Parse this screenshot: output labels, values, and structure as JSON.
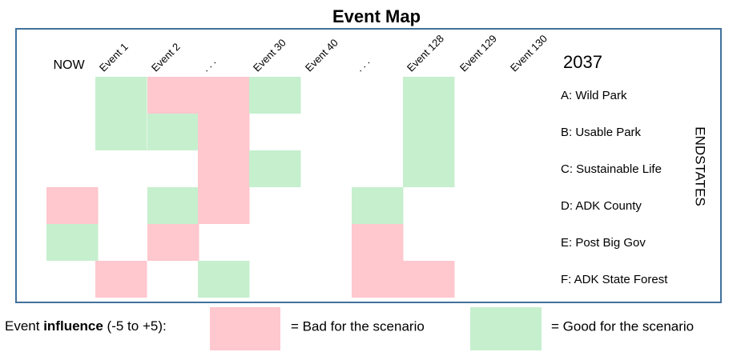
{
  "title": "Event Map",
  "year": "2037",
  "side_label": "ENDSTATES",
  "columns": [
    "NOW",
    "Event 1",
    "Event 2",
    ". . .",
    "Event 30",
    "Event 40",
    ". . .",
    "Event 128",
    "Event 129",
    "Event 130"
  ],
  "rows": [
    {
      "label": "A: Wild Park",
      "cells": [
        null,
        1,
        0,
        0,
        1,
        null,
        null,
        1,
        null,
        null
      ]
    },
    {
      "label": "B: Usable Park",
      "cells": [
        null,
        1,
        1,
        0,
        null,
        null,
        null,
        1,
        null,
        null
      ]
    },
    {
      "label": "C: Sustainable Life",
      "cells": [
        null,
        null,
        null,
        0,
        1,
        null,
        null,
        1,
        null,
        null
      ]
    },
    {
      "label": "D: ADK County",
      "cells": [
        0,
        null,
        1,
        0,
        null,
        null,
        1,
        null,
        null,
        null
      ]
    },
    {
      "label": "E: Post Big Gov",
      "cells": [
        1,
        null,
        0,
        null,
        null,
        null,
        0,
        null,
        null,
        null
      ]
    },
    {
      "label": "F: ADK State Forest",
      "cells": [
        null,
        0,
        null,
        1,
        null,
        null,
        0,
        0,
        null,
        null
      ]
    }
  ],
  "legend": {
    "intro": [
      "Event ",
      "influence",
      " (-5 to +5):"
    ],
    "items": [
      {
        "label": "= Bad for the scenario",
        "color": "#ffc7ce"
      },
      {
        "label": "= Good for the scenario",
        "color": "#c6efce"
      }
    ]
  }
}
